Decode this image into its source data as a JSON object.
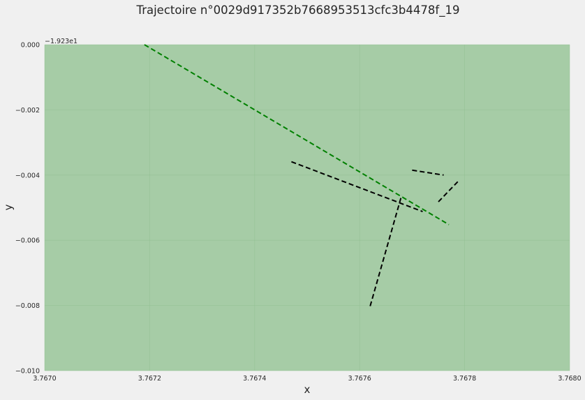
{
  "chart_data": {
    "type": "line",
    "title": "Trajectoire n°0029d917352b7668953513cfc3b4478f_19",
    "xlabel": "x",
    "ylabel": "y",
    "xlim": [
      3.767,
      3.768
    ],
    "ylim": [
      -0.01,
      0.0
    ],
    "y_offset_label": "−1.923e1",
    "x_ticks": [
      "3.7670",
      "3.7672",
      "3.7674",
      "3.7676",
      "3.7678",
      "3.7680"
    ],
    "x_tick_values": [
      3.767,
      3.7672,
      3.7674,
      3.7676,
      3.7678,
      3.768
    ],
    "y_ticks": [
      "0.000",
      "−0.002",
      "−0.004",
      "−0.006",
      "−0.008",
      "−0.010"
    ],
    "y_tick_values": [
      0.0,
      -0.002,
      -0.004,
      -0.006,
      -0.008,
      -0.01
    ],
    "grid": true,
    "colors": {
      "plot_background": "#a6cca6",
      "page_background": "#f0f0f0",
      "highlight_series": "#008000",
      "other_series": "#000000"
    },
    "series": [
      {
        "color": "#008000",
        "style": "dashed",
        "x": [
          3.76719,
          3.76777
        ],
        "y": [
          0.0,
          -0.00552
        ]
      },
      {
        "color": "#000000",
        "style": "dashed",
        "x": [
          3.76747,
          3.76772
        ],
        "y": [
          -0.00359,
          -0.00512
        ]
      },
      {
        "color": "#000000",
        "style": "dashed",
        "x": [
          3.76762,
          3.76768
        ],
        "y": [
          -0.00802,
          -0.00462
        ]
      },
      {
        "color": "#000000",
        "style": "dashed",
        "x": [
          3.7677,
          3.76776
        ],
        "y": [
          -0.00385,
          -0.004
        ]
      },
      {
        "color": "#000000",
        "style": "dashed",
        "x": [
          3.76775,
          3.76779
        ],
        "y": [
          -0.00482,
          -0.00415
        ]
      }
    ]
  }
}
